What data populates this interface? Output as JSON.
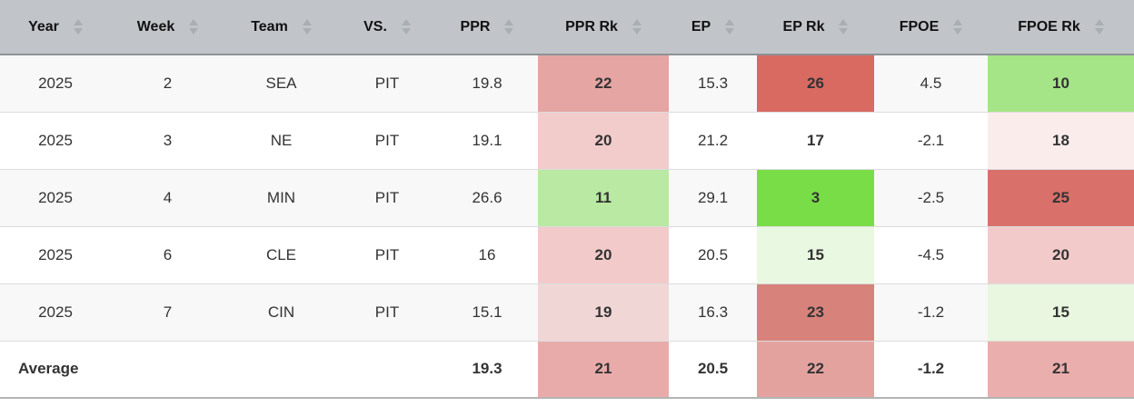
{
  "table": {
    "columns": [
      {
        "id": "year",
        "label": "Year"
      },
      {
        "id": "week",
        "label": "Week"
      },
      {
        "id": "team",
        "label": "Team"
      },
      {
        "id": "vs",
        "label": "VS."
      },
      {
        "id": "ppr",
        "label": "PPR"
      },
      {
        "id": "ppr_rk",
        "label": "PPR Rk"
      },
      {
        "id": "ep",
        "label": "EP"
      },
      {
        "id": "ep_rk",
        "label": "EP Rk"
      },
      {
        "id": "fpoe",
        "label": "FPOE"
      },
      {
        "id": "fpoe_rk",
        "label": "FPOE Rk"
      }
    ],
    "rank_columns": [
      "ppr_rk",
      "ep_rk",
      "fpoe_rk"
    ],
    "rows": [
      {
        "year": "2025",
        "week": "2",
        "team": "SEA",
        "vs": "PIT",
        "ppr": "19.8",
        "ppr_rk": "22",
        "ep": "15.3",
        "ep_rk": "26",
        "fpoe": "4.5",
        "fpoe_rk": "10",
        "cell_colors": {
          "ppr_rk": "#e4a5a3",
          "ep_rk": "#d96a62",
          "fpoe_rk": "#a5e487"
        }
      },
      {
        "year": "2025",
        "week": "3",
        "team": "NE",
        "vs": "PIT",
        "ppr": "19.1",
        "ppr_rk": "20",
        "ep": "21.2",
        "ep_rk": "17",
        "fpoe": "-2.1",
        "fpoe_rk": "18",
        "cell_colors": {
          "ppr_rk": "#f2cbcb",
          "ep_rk": "#ffffff",
          "fpoe_rk": "#fbecec"
        }
      },
      {
        "year": "2025",
        "week": "4",
        "team": "MIN",
        "vs": "PIT",
        "ppr": "26.6",
        "ppr_rk": "11",
        "ep": "29.1",
        "ep_rk": "3",
        "fpoe": "-2.5",
        "fpoe_rk": "25",
        "cell_colors": {
          "ppr_rk": "#b9e9a3",
          "ep_rk": "#79dd48",
          "fpoe_rk": "#d9706a"
        }
      },
      {
        "year": "2025",
        "week": "6",
        "team": "CLE",
        "vs": "PIT",
        "ppr": "16",
        "ppr_rk": "20",
        "ep": "20.5",
        "ep_rk": "15",
        "fpoe": "-4.5",
        "fpoe_rk": "20",
        "cell_colors": {
          "ppr_rk": "#f2caca",
          "ep_rk": "#e9f8e1",
          "fpoe_rk": "#f3caca"
        }
      },
      {
        "year": "2025",
        "week": "7",
        "team": "CIN",
        "vs": "PIT",
        "ppr": "15.1",
        "ppr_rk": "19",
        "ep": "16.3",
        "ep_rk": "23",
        "fpoe": "-1.2",
        "fpoe_rk": "15",
        "cell_colors": {
          "ppr_rk": "#f1d6d6",
          "ep_rk": "#d8827c",
          "fpoe_rk": "#e9f6e0"
        }
      }
    ],
    "average_row": {
      "label": "Average",
      "year": "Average",
      "week": "",
      "team": "",
      "vs": "",
      "ppr": "19.3",
      "ppr_rk": "21",
      "ep": "20.5",
      "ep_rk": "22",
      "fpoe": "-1.2",
      "fpoe_rk": "21",
      "cell_colors": {
        "ppr_rk": "#e9aba9",
        "ep_rk": "#e4a29f",
        "fpoe_rk": "#eaaeac"
      }
    }
  },
  "colors": {
    "header_bg": "#c1c5c9",
    "header_border": "#8d9296",
    "header_text": "#111111",
    "sort_arrow": "#a9aeb2",
    "row_bg": "#ffffff",
    "row_alt_bg": "#f8f8f8",
    "row_border": "#dcdcdc",
    "bottom_border": "#b4b4b4",
    "text": "#333333",
    "rank_best_green": "#79dd48",
    "rank_worst_red": "#d96a62"
  }
}
